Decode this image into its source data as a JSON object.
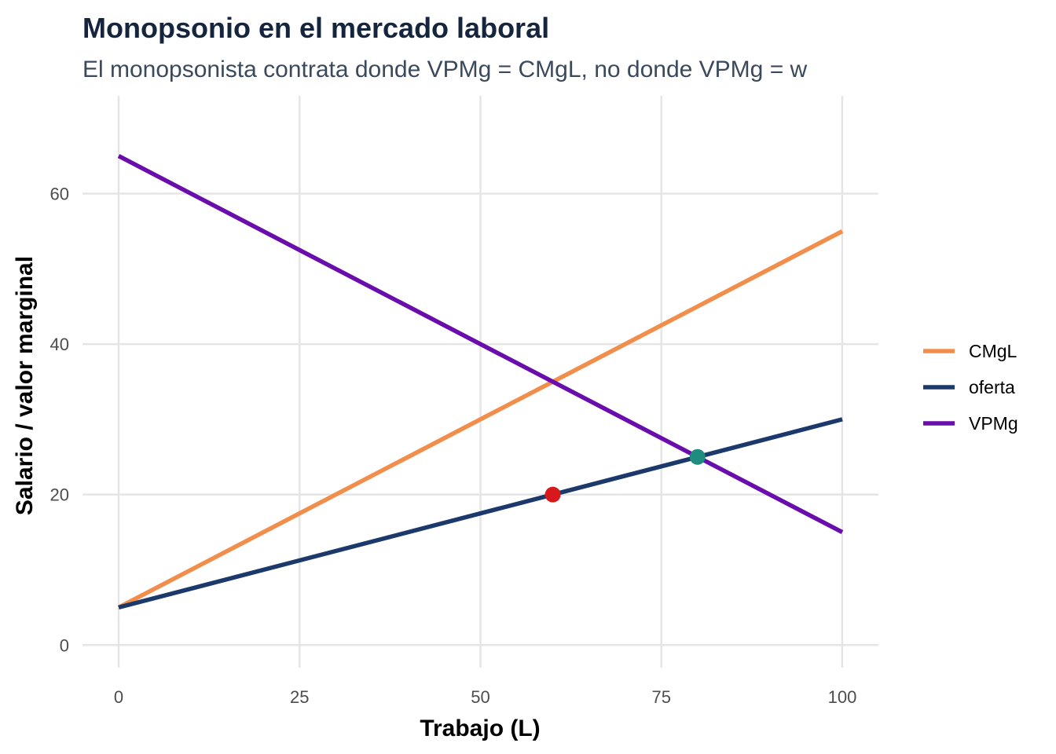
{
  "chart_data": {
    "type": "line",
    "title": "Monopsonio en el mercado laboral",
    "subtitle": "El monopsonista contrata donde VPMg = CMgL, no donde VPMg = w",
    "xlabel": "Trabajo (L)",
    "ylabel": "Salario / valor marginal",
    "xlim": [
      -5,
      105
    ],
    "ylim": [
      -3,
      73
    ],
    "x_ticks": [
      0,
      25,
      50,
      75,
      100
    ],
    "x_tick_labels": [
      "0",
      "25",
      "50",
      "75",
      "100"
    ],
    "y_ticks": [
      0,
      20,
      40,
      60
    ],
    "y_tick_labels": [
      "0",
      "20",
      "40",
      "60"
    ],
    "grid": true,
    "legend_position": "right",
    "series": [
      {
        "name": "CMgL",
        "color": "#F28E4B",
        "x": [
          0,
          100
        ],
        "y": [
          5,
          55
        ]
      },
      {
        "name": "oferta",
        "color": "#1B3A6B",
        "x": [
          0,
          100
        ],
        "y": [
          5,
          30
        ]
      },
      {
        "name": "VPMg",
        "color": "#6A0DAD",
        "x": [
          0,
          100
        ],
        "y": [
          65,
          15
        ]
      }
    ],
    "points": [
      {
        "x": 60,
        "y": 20,
        "color": "#D7191C"
      },
      {
        "x": 80,
        "y": 25,
        "color": "#1E8C7E"
      }
    ],
    "colors": {
      "title": "#14253D",
      "subtitle": "#3A4A5C",
      "grid": "#E5E5E5"
    }
  }
}
